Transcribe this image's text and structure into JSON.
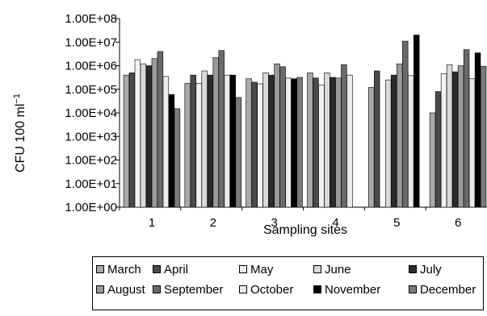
{
  "chart_data": {
    "type": "bar",
    "scale": "log",
    "ylabel": "CFU 100 ml",
    "ylabel_sup": "−1",
    "xlabel": "Sampling sites",
    "yticks": [
      "1.00E+00",
      "1.00E+01",
      "1.00E+02",
      "1.00E+03",
      "1.00E+04",
      "1.00E+05",
      "1.00E+06",
      "1.00E+07",
      "1.00E+08"
    ],
    "ylim": [
      1,
      100000000
    ],
    "categories": [
      "1",
      "2",
      "3",
      "4",
      "5",
      "6"
    ],
    "legend_placement": "bottom",
    "series": [
      {
        "name": "March",
        "color": "#a9a9a9",
        "values": [
          400000,
          180000,
          280000,
          500000,
          120000,
          10000
        ]
      },
      {
        "name": "April",
        "color": "#4a4a4a",
        "values": [
          500000,
          400000,
          200000,
          300000,
          600000,
          80000
        ]
      },
      {
        "name": "May",
        "color": "#f2f2f2",
        "values": [
          1800000,
          180000,
          170000,
          150000,
          null,
          450000
        ]
      },
      {
        "name": "June",
        "color": "#d9d9d9",
        "values": [
          1200000,
          600000,
          500000,
          500000,
          250000,
          1100000
        ]
      },
      {
        "name": "July",
        "color": "#2b2b2b",
        "values": [
          1000000,
          400000,
          400000,
          320000,
          400000,
          550000
        ]
      },
      {
        "name": "August",
        "color": "#9a9a9a",
        "values": [
          2000000,
          2200000,
          1200000,
          300000,
          1200000,
          1000000
        ]
      },
      {
        "name": "September",
        "color": "#6a6a6a",
        "values": [
          4000000,
          4400000,
          900000,
          1100000,
          11000000,
          4800000
        ]
      },
      {
        "name": "October",
        "color": "#ebebeb",
        "values": [
          350000,
          400000,
          300000,
          400000,
          380000,
          280000
        ]
      },
      {
        "name": "November",
        "color": "#000000",
        "values": [
          60000,
          400000,
          280000,
          null,
          20000000,
          3500000
        ]
      },
      {
        "name": "December",
        "color": "#7a7a7a",
        "values": [
          15000,
          45000,
          320000,
          null,
          null,
          950000
        ]
      }
    ]
  }
}
